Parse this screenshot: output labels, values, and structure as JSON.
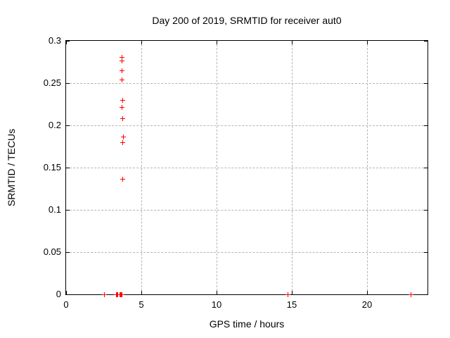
{
  "title": "Day 200 of 2019, SRMTID for receiver aut0",
  "colors": {
    "background": "#ffffff",
    "border": "#000000",
    "grid": "#b4b4b4",
    "marker": "#ff0000"
  },
  "chart_data": {
    "type": "scatter",
    "title": "Day 200 of 2019, SRMTID for receiver aut0",
    "xlabel": "GPS time / hours",
    "ylabel": "SRMTID / TECUs",
    "xlim": [
      0,
      24
    ],
    "ylim": [
      0,
      0.3
    ],
    "grid": true,
    "legend": "none",
    "marker": "plus",
    "marker_color": "#ff0000",
    "xticks": [
      {
        "v": 0,
        "label": "0"
      },
      {
        "v": 5,
        "label": "5"
      },
      {
        "v": 10,
        "label": "10"
      },
      {
        "v": 15,
        "label": "15"
      },
      {
        "v": 20,
        "label": "20"
      }
    ],
    "yticks": [
      {
        "v": 0,
        "label": "0"
      },
      {
        "v": 0.05,
        "label": "0.05"
      },
      {
        "v": 0.1,
        "label": "0.1"
      },
      {
        "v": 0.15,
        "label": "0.15"
      },
      {
        "v": 0.2,
        "label": "0.2"
      },
      {
        "v": 0.25,
        "label": "0.25"
      },
      {
        "v": 0.3,
        "label": "0.3"
      }
    ],
    "series": [
      {
        "name": "SRMTID",
        "points": [
          [
            3.7,
            0.281
          ],
          [
            3.7,
            0.277
          ],
          [
            3.7,
            0.265
          ],
          [
            3.7,
            0.254
          ],
          [
            3.75,
            0.23
          ],
          [
            3.7,
            0.222
          ],
          [
            3.75,
            0.208
          ],
          [
            3.8,
            0.187
          ],
          [
            3.75,
            0.18
          ],
          [
            3.75,
            0.137
          ],
          [
            2.5,
            0
          ],
          [
            3.3,
            0
          ],
          [
            3.35,
            0
          ],
          [
            3.4,
            0
          ],
          [
            3.55,
            0
          ],
          [
            3.6,
            0
          ],
          [
            3.65,
            0
          ],
          [
            3.7,
            0
          ],
          [
            14.7,
            0
          ],
          [
            22.9,
            0
          ]
        ]
      }
    ]
  }
}
